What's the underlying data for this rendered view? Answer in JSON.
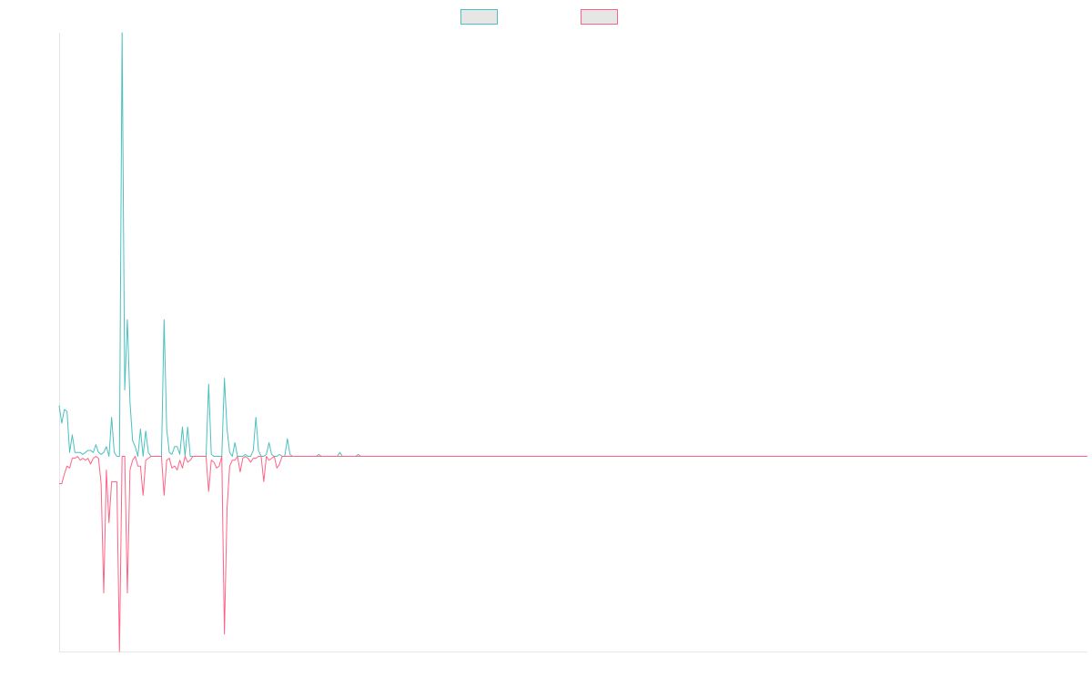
{
  "chart_data": {
    "type": "line",
    "title": "",
    "xlabel": "",
    "ylabel": "",
    "grid": false,
    "legend_position": "top",
    "x_count": 393,
    "ylim": [
      -1,
      2.17
    ],
    "series": [
      {
        "color": "#4bc0c0",
        "legend_fill": "#e6e6e6",
        "values": [
          0.26,
          0.17,
          0.24,
          0.23,
          0.02,
          0.11,
          0.02,
          0.02,
          0.02,
          0.01,
          0.02,
          0.03,
          0.03,
          0.02,
          0.06,
          0.02,
          0.01,
          0.02,
          0.05,
          0.0,
          0.2,
          0.02,
          0.0,
          0.0,
          2.17,
          0.34,
          0.7,
          0.28,
          0.08,
          0.05,
          0.0,
          0.14,
          0.0,
          0.13,
          0.02,
          0.0,
          0.0,
          0.0,
          0.0,
          0.0,
          0.7,
          0.14,
          0.02,
          0.01,
          0.05,
          0.05,
          0.01,
          0.15,
          0.0,
          0.15,
          0.0,
          0.0,
          0.0,
          0.0,
          0.0,
          0.0,
          0.0,
          0.37,
          0.01,
          0.0,
          0.0,
          0.0,
          0.0,
          0.4,
          0.14,
          0.02,
          0.0,
          0.07,
          0.0,
          0.0,
          0.0,
          0.01,
          0.0,
          0.0,
          0.03,
          0.2,
          0.03,
          0.0,
          0.0,
          0.01,
          0.07,
          0.01,
          0.0,
          0.0,
          0.01,
          0.0,
          0.0,
          0.09,
          0.01,
          0.0,
          0.0,
          0.0,
          0.0,
          0.0,
          0.0,
          0.0,
          0.0,
          0.0,
          0.0,
          0.01,
          0.0,
          0.0,
          0.0,
          0.0,
          0.0,
          0.0,
          0.0,
          0.02,
          0.0,
          0.0,
          0.0,
          0.0,
          0.0,
          0.0,
          0.01,
          0.0,
          0.0,
          0.0,
          0.0,
          0.0,
          0.0,
          0.0,
          0.0,
          0.0,
          0.0,
          0.0,
          0.0,
          0.0,
          0.0,
          0.0,
          0.0,
          0.0,
          0.0,
          0.0,
          0.0,
          0.0,
          0.0,
          0.0,
          0.0,
          0.0,
          0.0,
          0.0,
          0.0,
          0.0,
          0.0,
          0.0,
          0.0,
          0.0,
          0.0,
          0.0,
          0.0,
          0.0,
          0.0,
          0.0,
          0.0,
          0.0,
          0.0,
          0.0,
          0.0,
          0.0,
          0.0,
          0.0,
          0.0,
          0.0,
          0.0,
          0.0,
          0.0,
          0.0,
          0.0,
          0.0,
          0.0,
          0.0,
          0.0,
          0.0,
          0.0,
          0.0,
          0.0,
          0.0,
          0.0,
          0.0,
          0.0,
          0.0,
          0.0,
          0.0,
          0.0,
          0.0,
          0.0,
          0.0,
          0.0,
          0.0,
          0.0,
          0.0,
          0.0,
          0.0,
          0.0,
          0.0,
          0.0,
          0.0,
          0.0,
          0.0,
          0.0,
          0.0,
          0.0,
          0.0,
          0.0,
          0.0,
          0.0,
          0.0,
          0.0,
          0.0,
          0.0,
          0.0,
          0.0,
          0.0,
          0.0,
          0.0,
          0.0,
          0.0,
          0.0,
          0.0,
          0.0,
          0.0,
          0.0,
          0.0,
          0.0,
          0.0,
          0.0,
          0.0,
          0.0,
          0.0,
          0.0,
          0.0,
          0.0,
          0.0,
          0.0,
          0.0,
          0.0,
          0.0,
          0.0,
          0.0,
          0.0,
          0.0,
          0.0,
          0.0,
          0.0,
          0.0,
          0.0,
          0.0,
          0.0,
          0.0,
          0.0,
          0.0,
          0.0,
          0.0,
          0.0,
          0.0,
          0.0,
          0.0,
          0.0,
          0.0,
          0.0,
          0.0,
          0.0,
          0.0,
          0.0,
          0.0,
          0.0,
          0.0,
          0.0,
          0.0,
          0.0,
          0.0,
          0.0,
          0.0,
          0.0,
          0.0,
          0.0,
          0.0,
          0.0,
          0.0,
          0.0,
          0.0,
          0.0,
          0.0,
          0.0,
          0.0,
          0.0,
          0.0,
          0.0,
          0.0,
          0.0,
          0.0,
          0.0,
          0.0,
          0.0,
          0.0,
          0.0,
          0.0,
          0.0,
          0.0,
          0.0,
          0.0,
          0.0,
          0.0,
          0.0,
          0.0,
          0.0,
          0.0,
          0.0,
          0.0,
          0.0,
          0.0,
          0.0,
          0.0,
          0.0,
          0.0,
          0.0,
          0.0,
          0.0,
          0.0,
          0.0,
          0.0,
          0.0,
          0.0,
          0.0,
          0.0,
          0.0,
          0.0,
          0.0,
          0.0,
          0.0,
          0.0,
          0.0,
          0.0,
          0.0,
          0.0,
          0.0,
          0.0,
          0.0,
          0.0,
          0.0,
          0.0,
          0.0,
          0.0,
          0.0,
          0.0,
          0.0,
          0.0,
          0.0,
          0.0,
          0.0,
          0.0,
          0.0,
          0.0,
          0.0,
          0.0,
          0.0,
          0.0,
          0.0,
          0.0,
          0.0,
          0.0,
          0.0,
          0.0,
          0.0,
          0.0,
          0.0,
          0.0,
          0.0,
          0.0,
          0.0
        ]
      },
      {
        "color": "#ff6384",
        "legend_fill": "#e6e6e6",
        "values": [
          -0.14,
          -0.14,
          -0.09,
          -0.05,
          -0.06,
          -0.01,
          -0.01,
          0.0,
          -0.02,
          -0.01,
          -0.02,
          -0.01,
          -0.04,
          -0.01,
          0.0,
          -0.01,
          -0.14,
          -0.7,
          -0.07,
          -0.34,
          -0.13,
          -0.13,
          -0.13,
          -1.0,
          0.0,
          0.0,
          -0.7,
          -0.07,
          -0.02,
          0.0,
          -0.05,
          -0.05,
          -0.2,
          -0.02,
          -0.01,
          0.0,
          0.0,
          0.0,
          0.0,
          0.0,
          -0.2,
          -0.02,
          -0.01,
          -0.06,
          -0.05,
          -0.07,
          -0.02,
          -0.06,
          0.0,
          -0.03,
          -0.02,
          0.0,
          0.0,
          0.0,
          0.0,
          0.0,
          0.0,
          -0.18,
          -0.02,
          -0.03,
          -0.06,
          -0.05,
          0.0,
          -0.91,
          -0.27,
          -0.05,
          -0.02,
          -0.02,
          0.0,
          -0.08,
          -0.01,
          0.0,
          -0.01,
          -0.03,
          -0.01,
          -0.01,
          0.0,
          0.0,
          -0.13,
          0.0,
          -0.02,
          -0.01,
          0.0,
          -0.06,
          -0.04,
          0.0,
          0.0,
          0.0,
          0.0,
          0.0,
          0.0,
          0.0,
          0.0,
          0.0,
          0.0,
          0.0,
          0.0,
          0.0,
          0.0,
          0.0,
          0.0,
          0.0,
          0.0,
          0.0,
          0.0,
          0.0,
          0.0,
          0.0,
          0.0,
          0.0,
          0.0,
          0.0,
          0.0,
          0.0,
          0.0,
          0.0,
          0.0,
          0.0,
          0.0,
          0.0,
          0.0,
          0.0,
          0.0,
          0.0,
          0.0,
          0.0,
          0.0,
          0.0,
          0.0,
          0.0,
          0.0,
          0.0,
          0.0,
          0.0,
          0.0,
          0.0,
          0.0,
          0.0,
          0.0,
          0.0,
          0.0,
          0.0,
          0.0,
          0.0,
          0.0,
          0.0,
          0.0,
          0.0,
          0.0,
          0.0,
          0.0,
          0.0,
          0.0,
          0.0,
          0.0,
          0.0,
          0.0,
          0.0,
          0.0,
          0.0,
          0.0,
          0.0,
          0.0,
          0.0,
          0.0,
          0.0,
          0.0,
          0.0,
          0.0,
          0.0,
          0.0,
          0.0,
          0.0,
          0.0,
          0.0,
          0.0,
          0.0,
          0.0,
          0.0,
          0.0,
          0.0,
          0.0,
          0.0,
          0.0,
          0.0,
          0.0,
          0.0,
          0.0,
          0.0,
          0.0,
          0.0,
          0.0,
          0.0,
          0.0,
          0.0,
          0.0,
          0.0,
          0.0,
          0.0,
          0.0,
          0.0,
          0.0,
          0.0,
          0.0,
          0.0,
          0.0,
          0.0,
          0.0,
          0.0,
          0.0,
          0.0,
          0.0,
          0.0,
          0.0,
          0.0,
          0.0,
          0.0,
          0.0,
          0.0,
          0.0,
          0.0,
          0.0,
          0.0,
          0.0,
          0.0,
          0.0,
          0.0,
          0.0,
          0.0,
          0.0,
          0.0,
          0.0,
          0.0,
          0.0,
          0.0,
          0.0,
          0.0,
          0.0,
          0.0,
          0.0,
          0.0,
          0.0,
          0.0,
          0.0,
          0.0,
          0.0,
          0.0,
          0.0,
          0.0,
          0.0,
          0.0,
          0.0,
          0.0,
          0.0,
          0.0,
          0.0,
          0.0,
          0.0,
          0.0,
          0.0,
          0.0,
          0.0,
          0.0,
          0.0,
          0.0,
          0.0,
          0.0,
          0.0,
          0.0,
          0.0,
          0.0,
          0.0,
          0.0,
          0.0,
          0.0,
          0.0,
          0.0,
          0.0,
          0.0,
          0.0,
          0.0,
          0.0,
          0.0,
          0.0,
          0.0,
          0.0,
          0.0,
          0.0,
          0.0,
          0.0,
          0.0,
          0.0,
          0.0,
          0.0,
          0.0,
          0.0,
          0.0,
          0.0,
          0.0,
          0.0,
          0.0,
          0.0,
          0.0,
          0.0,
          0.0,
          0.0,
          0.0,
          0.0,
          0.0,
          0.0,
          0.0,
          0.0,
          0.0,
          0.0,
          0.0,
          0.0,
          0.0,
          0.0,
          0.0,
          0.0,
          0.0,
          0.0,
          0.0,
          0.0,
          0.0,
          0.0,
          0.0,
          0.0,
          0.0,
          0.0,
          0.0,
          0.0,
          0.0,
          0.0,
          0.0,
          0.0,
          0.0,
          0.0,
          0.0,
          0.0,
          0.0,
          0.0,
          0.0,
          0.0,
          0.0,
          0.0,
          0.0,
          0.0,
          0.0,
          0.0,
          0.0,
          0.0,
          0.0,
          0.0,
          0.0,
          0.0,
          0.0,
          0.0,
          0.0,
          0.0,
          0.0,
          0.0,
          0.0,
          0.0,
          0.0,
          0.0,
          0.0,
          0.0,
          0.0,
          0.0,
          0.0,
          0.0,
          0.0
        ]
      }
    ]
  }
}
